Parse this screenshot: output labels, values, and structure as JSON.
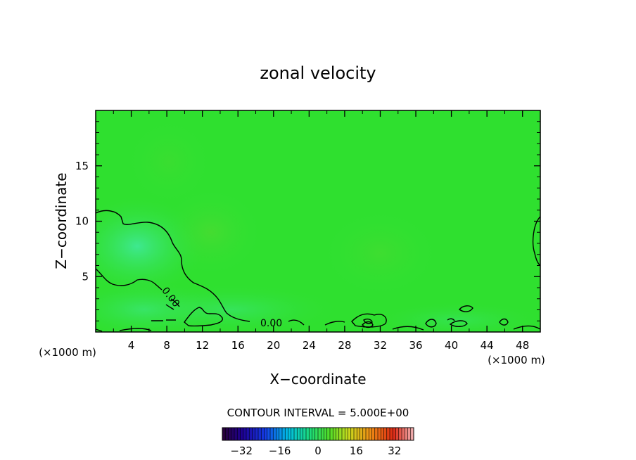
{
  "chart_data": {
    "type": "heatmap",
    "title": "zonal velocity",
    "xlabel": "X−coordinate",
    "ylabel": "Z−coordinate",
    "x_unit_left": "(×1000 m)",
    "x_unit_right": "(×1000 m)",
    "xlim": [
      0,
      50
    ],
    "ylim": [
      0,
      20
    ],
    "x_ticks": [
      4,
      8,
      12,
      16,
      20,
      24,
      28,
      32,
      36,
      40,
      44,
      48
    ],
    "y_ticks": [
      5,
      10,
      15
    ],
    "contour_label": "0.00",
    "contour_interval_text": "CONTOUR INTERVAL = 5.000E+00",
    "colorbar": {
      "range": [
        -40,
        40
      ],
      "ticks": [
        -32,
        -16,
        0,
        16,
        32
      ],
      "tick_labels": [
        "−32",
        "−16",
        "0",
        "16",
        "32"
      ]
    },
    "colors": {
      "background_field": "#2ee02e",
      "weak_negative_field": "#3ae678",
      "contour": "#000000"
    }
  }
}
